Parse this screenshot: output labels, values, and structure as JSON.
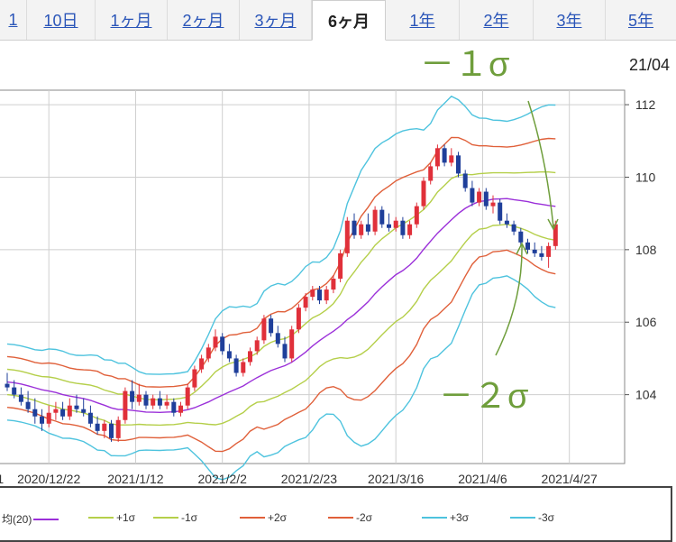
{
  "tabs": [
    {
      "label": "1"
    },
    {
      "label": "10日"
    },
    {
      "label": "1ヶ月"
    },
    {
      "label": "2ヶ月"
    },
    {
      "label": "3ヶ月"
    },
    {
      "label": "6ヶ月",
      "active": true
    },
    {
      "label": "1年"
    },
    {
      "label": "2年"
    },
    {
      "label": "3年"
    },
    {
      "label": "5年"
    }
  ],
  "header_date": "21/04",
  "legend": {
    "items": [
      {
        "label": "均(20)",
        "color": "#9b30d9"
      },
      {
        "label": "+1σ",
        "color": "#b5cf4a"
      },
      {
        "label": "-1σ",
        "color": "#b5cf4a"
      },
      {
        "label": "+2σ",
        "color": "#e0603a"
      },
      {
        "label": "-2σ",
        "color": "#e0603a"
      },
      {
        "label": "+3σ",
        "color": "#4ec3de"
      },
      {
        "label": "-3σ",
        "color": "#4ec3de"
      }
    ]
  },
  "annotations": {
    "minus1": "－１σ",
    "minus2": "－２σ",
    "color": "#6f9e3c"
  },
  "chart_data": {
    "type": "candlestick",
    "x_tick_labels": [
      "1",
      "2020/12/22",
      "2021/1/12",
      "2021/2/2",
      "2021/2/23",
      "2021/3/16",
      "2021/4/6",
      "2021/4/27"
    ],
    "y_ticks": [
      104,
      106,
      108,
      110,
      112
    ],
    "ylim": [
      102.1,
      112.4
    ],
    "grid": true,
    "colors": {
      "up": "#e0303a",
      "down": "#1f3f9a",
      "ma": "#9b30d9",
      "s1": "#b5cf4a",
      "s2": "#e0603a",
      "s3": "#4ec3de"
    },
    "ohlc": [
      [
        104.3,
        104.6,
        104.1,
        104.2
      ],
      [
        104.2,
        104.4,
        103.9,
        104.0
      ],
      [
        104.0,
        104.2,
        103.7,
        103.8
      ],
      [
        103.8,
        104.1,
        103.5,
        103.6
      ],
      [
        103.6,
        103.9,
        103.2,
        103.4
      ],
      [
        103.4,
        103.6,
        103.0,
        103.2
      ],
      [
        103.2,
        103.7,
        103.1,
        103.5
      ],
      [
        103.5,
        103.8,
        103.3,
        103.6
      ],
      [
        103.6,
        103.8,
        103.3,
        103.4
      ],
      [
        103.4,
        103.9,
        103.3,
        103.7
      ],
      [
        103.7,
        104.0,
        103.5,
        103.6
      ],
      [
        103.6,
        103.9,
        103.4,
        103.5
      ],
      [
        103.5,
        103.7,
        103.1,
        103.2
      ],
      [
        103.2,
        103.4,
        102.9,
        103.0
      ],
      [
        103.0,
        103.3,
        102.8,
        103.2
      ],
      [
        103.2,
        103.3,
        102.7,
        102.8
      ],
      [
        102.8,
        103.4,
        102.7,
        103.3
      ],
      [
        103.3,
        104.2,
        103.2,
        104.1
      ],
      [
        104.1,
        104.4,
        103.6,
        103.8
      ],
      [
        103.8,
        104.3,
        103.7,
        104.0
      ],
      [
        104.0,
        104.1,
        103.6,
        103.7
      ],
      [
        103.7,
        104.0,
        103.6,
        103.9
      ],
      [
        103.9,
        104.1,
        103.6,
        103.7
      ],
      [
        103.7,
        104.0,
        103.6,
        103.8
      ],
      [
        103.8,
        103.9,
        103.4,
        103.5
      ],
      [
        103.5,
        103.8,
        103.4,
        103.7
      ],
      [
        103.7,
        104.3,
        103.6,
        104.2
      ],
      [
        104.2,
        104.8,
        104.1,
        104.7
      ],
      [
        104.7,
        105.1,
        104.6,
        105.0
      ],
      [
        105.0,
        105.4,
        104.9,
        105.3
      ],
      [
        105.3,
        105.8,
        105.2,
        105.6
      ],
      [
        105.6,
        105.7,
        105.1,
        105.2
      ],
      [
        105.2,
        105.4,
        104.9,
        105.0
      ],
      [
        105.0,
        105.1,
        104.5,
        104.6
      ],
      [
        104.6,
        105.0,
        104.5,
        104.9
      ],
      [
        104.9,
        105.3,
        104.8,
        105.2
      ],
      [
        105.2,
        105.6,
        105.1,
        105.5
      ],
      [
        105.5,
        106.2,
        105.4,
        106.1
      ],
      [
        106.1,
        106.2,
        105.6,
        105.7
      ],
      [
        105.7,
        105.9,
        105.3,
        105.4
      ],
      [
        105.4,
        105.6,
        104.9,
        105.0
      ],
      [
        105.0,
        105.9,
        104.9,
        105.8
      ],
      [
        105.8,
        106.5,
        105.7,
        106.4
      ],
      [
        106.4,
        106.8,
        106.3,
        106.7
      ],
      [
        106.7,
        107.0,
        106.6,
        106.9
      ],
      [
        106.9,
        107.0,
        106.5,
        106.6
      ],
      [
        106.6,
        107.0,
        106.5,
        106.9
      ],
      [
        106.9,
        107.3,
        106.8,
        107.2
      ],
      [
        107.2,
        108.0,
        107.1,
        107.9
      ],
      [
        107.9,
        108.9,
        107.8,
        108.8
      ],
      [
        108.8,
        109.0,
        108.3,
        108.4
      ],
      [
        108.4,
        108.8,
        108.3,
        108.7
      ],
      [
        108.7,
        109.0,
        108.4,
        108.5
      ],
      [
        108.5,
        109.2,
        108.4,
        109.1
      ],
      [
        109.1,
        109.2,
        108.6,
        108.7
      ],
      [
        108.7,
        109.0,
        108.5,
        108.6
      ],
      [
        108.6,
        108.9,
        108.5,
        108.8
      ],
      [
        108.8,
        108.9,
        108.3,
        108.4
      ],
      [
        108.4,
        108.8,
        108.3,
        108.7
      ],
      [
        108.7,
        109.3,
        108.6,
        109.2
      ],
      [
        109.2,
        110.0,
        109.1,
        109.9
      ],
      [
        109.9,
        110.4,
        109.8,
        110.3
      ],
      [
        110.3,
        110.9,
        110.2,
        110.8
      ],
      [
        110.8,
        110.9,
        110.3,
        110.4
      ],
      [
        110.4,
        110.8,
        110.3,
        110.6
      ],
      [
        110.6,
        110.7,
        110.0,
        110.1
      ],
      [
        110.1,
        110.2,
        109.6,
        109.7
      ],
      [
        109.7,
        109.9,
        109.2,
        109.3
      ],
      [
        109.3,
        109.7,
        109.2,
        109.6
      ],
      [
        109.6,
        109.7,
        109.1,
        109.2
      ],
      [
        109.2,
        109.5,
        109.0,
        109.3
      ],
      [
        109.3,
        109.4,
        108.7,
        108.8
      ],
      [
        108.8,
        109.0,
        108.6,
        108.7
      ],
      [
        108.7,
        108.8,
        108.4,
        108.5
      ],
      [
        108.5,
        108.6,
        108.1,
        108.2
      ],
      [
        108.2,
        108.3,
        107.9,
        108.0
      ],
      [
        108.0,
        108.2,
        107.8,
        107.9
      ],
      [
        107.9,
        108.1,
        107.7,
        107.8
      ],
      [
        107.8,
        108.2,
        107.5,
        108.1
      ],
      [
        108.1,
        108.8,
        108.0,
        108.7
      ]
    ]
  }
}
